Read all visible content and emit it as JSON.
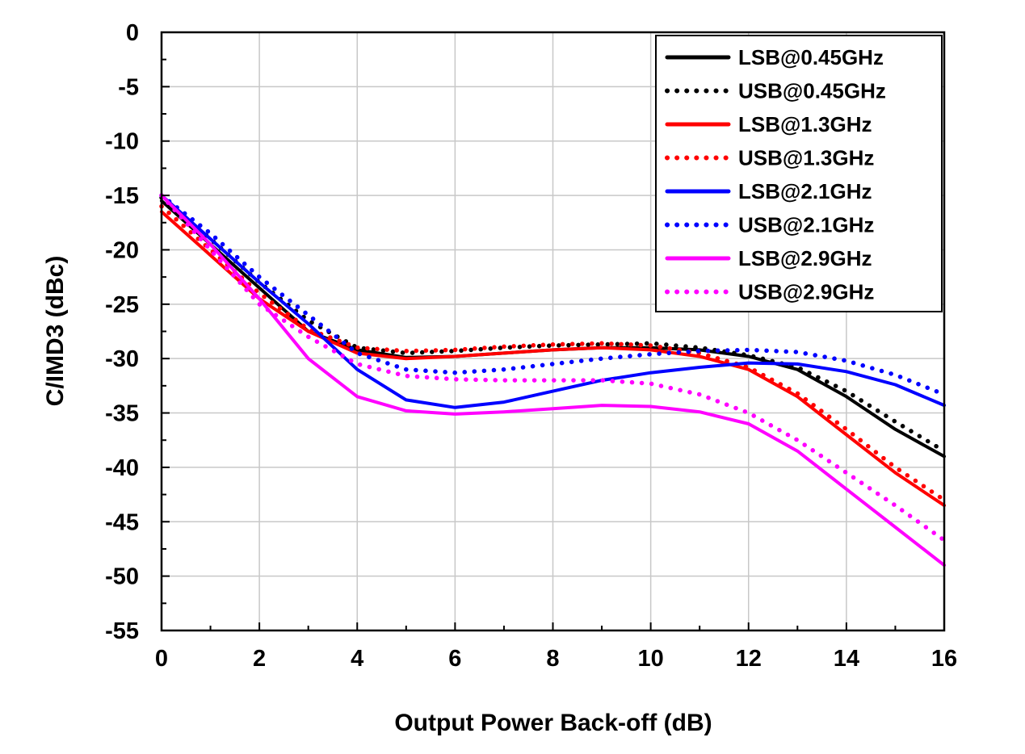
{
  "chart_data": {
    "type": "line",
    "title": "",
    "xlabel": "Output Power Back-off (dB)",
    "ylabel": "C/IMD3 (dBc)",
    "xlim": [
      0,
      16
    ],
    "ylim": [
      -55,
      0
    ],
    "xticks": [
      0,
      2,
      4,
      6,
      8,
      10,
      12,
      14,
      16
    ],
    "yticks": [
      0,
      -5,
      -10,
      -15,
      -20,
      -25,
      -30,
      -35,
      -40,
      -45,
      -50,
      -55
    ],
    "grid": true,
    "legend_position": "top-right",
    "series": [
      {
        "name": "LSB@0.45GHz",
        "color": "#000000",
        "style": "solid",
        "x": [
          0,
          1,
          2,
          3,
          4,
          5,
          6,
          7,
          8,
          9,
          10,
          11,
          12,
          13,
          14,
          15,
          16
        ],
        "y": [
          -15.5,
          -19.5,
          -23.5,
          -27.5,
          -29.2,
          -29.9,
          -29.8,
          -29.5,
          -29.2,
          -29.0,
          -29.0,
          -29.2,
          -29.8,
          -31.0,
          -33.5,
          -36.5,
          -39.0
        ]
      },
      {
        "name": "USB@0.45GHz",
        "color": "#000000",
        "style": "dotted",
        "x": [
          0,
          1,
          2,
          3,
          4,
          5,
          6,
          7,
          8,
          9,
          10,
          11,
          12,
          13,
          14,
          15,
          16
        ],
        "y": [
          -15.2,
          -19.0,
          -23.0,
          -26.5,
          -29.0,
          -29.5,
          -29.3,
          -29.0,
          -28.8,
          -28.7,
          -28.6,
          -29.0,
          -29.7,
          -30.8,
          -33.0,
          -35.8,
          -38.5
        ]
      },
      {
        "name": "LSB@1.3GHz",
        "color": "#ff0000",
        "style": "solid",
        "x": [
          0,
          1,
          2,
          3,
          4,
          5,
          6,
          7,
          8,
          9,
          10,
          11,
          12,
          13,
          14,
          15,
          16
        ],
        "y": [
          -16.5,
          -20.5,
          -24.5,
          -27.5,
          -29.5,
          -30.0,
          -29.8,
          -29.5,
          -29.2,
          -29.0,
          -29.2,
          -29.8,
          -31.0,
          -33.5,
          -37.0,
          -40.5,
          -43.5
        ]
      },
      {
        "name": "USB@1.3GHz",
        "color": "#ff0000",
        "style": "dotted",
        "x": [
          0,
          1,
          2,
          3,
          4,
          5,
          6,
          7,
          8,
          9,
          10,
          11,
          12,
          13,
          14,
          15,
          16
        ],
        "y": [
          -16.0,
          -20.0,
          -24.0,
          -27.3,
          -29.0,
          -29.3,
          -29.2,
          -28.9,
          -28.7,
          -28.6,
          -28.8,
          -29.5,
          -30.8,
          -33.2,
          -36.5,
          -40.0,
          -43.0
        ]
      },
      {
        "name": "LSB@2.1GHz",
        "color": "#0000ff",
        "style": "solid",
        "x": [
          0,
          1,
          2,
          3,
          4,
          5,
          6,
          7,
          8,
          9,
          10,
          11,
          12,
          13,
          14,
          15,
          16
        ],
        "y": [
          -15.0,
          -19.0,
          -23.0,
          -26.8,
          -31.0,
          -33.8,
          -34.5,
          -34.0,
          -33.0,
          -32.0,
          -31.3,
          -30.8,
          -30.4,
          -30.5,
          -31.2,
          -32.4,
          -34.3
        ]
      },
      {
        "name": "USB@2.1GHz",
        "color": "#0000ff",
        "style": "dotted",
        "x": [
          0,
          1,
          2,
          3,
          4,
          5,
          6,
          7,
          8,
          9,
          10,
          11,
          12,
          13,
          14,
          15,
          16
        ],
        "y": [
          -15.0,
          -18.5,
          -22.5,
          -26.0,
          -29.5,
          -31.0,
          -31.3,
          -31.0,
          -30.5,
          -30.0,
          -29.6,
          -29.3,
          -29.2,
          -29.4,
          -30.2,
          -31.5,
          -33.3
        ]
      },
      {
        "name": "LSB@2.9GHz",
        "color": "#ff00ff",
        "style": "solid",
        "x": [
          0,
          1,
          2,
          3,
          4,
          5,
          6,
          7,
          8,
          9,
          10,
          11,
          12,
          13,
          14,
          15,
          16
        ],
        "y": [
          -15.0,
          -19.5,
          -24.5,
          -30.0,
          -33.5,
          -34.8,
          -35.1,
          -34.9,
          -34.6,
          -34.3,
          -34.4,
          -34.9,
          -36.0,
          -38.5,
          -42.0,
          -45.5,
          -49.0
        ]
      },
      {
        "name": "USB@2.9GHz",
        "color": "#ff00ff",
        "style": "dotted",
        "x": [
          0,
          1,
          2,
          3,
          4,
          5,
          6,
          7,
          8,
          9,
          10,
          11,
          12,
          13,
          14,
          15,
          16
        ],
        "y": [
          -15.0,
          -20.0,
          -25.0,
          -28.0,
          -30.5,
          -31.6,
          -31.9,
          -32.0,
          -32.0,
          -32.0,
          -32.3,
          -33.3,
          -35.0,
          -37.5,
          -40.5,
          -43.5,
          -46.7
        ]
      }
    ]
  }
}
